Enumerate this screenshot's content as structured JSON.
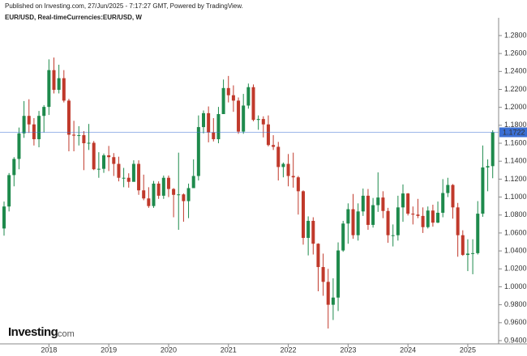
{
  "header": {
    "published": "Published on Investing.com, 27/Jun/2025 - 7:17:27 GMT, Powered by TradingView."
  },
  "logo": {
    "brand": "Investing",
    "suffix": ".com"
  },
  "chart_data": {
    "type": "candlestick",
    "title": "EUR/USD, Real-timeCurrencies:EUR/USD, W",
    "up_color": "#1e8a4c",
    "down_color": "#c0392b",
    "categories": [
      null,
      null,
      null,
      null,
      null,
      null,
      null,
      null,
      null,
      "2018",
      null,
      null,
      null,
      null,
      null,
      null,
      null,
      null,
      null,
      null,
      null,
      "2019",
      null,
      null,
      null,
      null,
      null,
      null,
      null,
      null,
      null,
      null,
      null,
      "2020",
      null,
      null,
      null,
      null,
      null,
      null,
      null,
      null,
      null,
      null,
      null,
      "2021",
      null,
      null,
      null,
      null,
      null,
      null,
      null,
      null,
      null,
      null,
      null,
      "2022",
      null,
      null,
      null,
      null,
      null,
      null,
      null,
      null,
      null,
      null,
      null,
      "2023",
      null,
      null,
      null,
      null,
      null,
      null,
      null,
      null,
      null,
      null,
      null,
      "2024",
      null,
      null,
      null,
      null,
      null,
      null,
      null,
      null,
      null,
      null,
      null,
      "2025",
      null,
      null,
      null,
      null,
      null
    ],
    "open": [
      1.065,
      1.0895,
      1.1245,
      1.1425,
      1.171,
      1.1905,
      1.181,
      1.1645,
      1.1905,
      1.2005,
      1.2415,
      1.2195,
      1.2325,
      1.2075,
      1.1695,
      1.1685,
      1.169,
      1.16,
      1.1605,
      1.131,
      1.1315,
      1.1465,
      1.1445,
      1.137,
      1.1215,
      1.1215,
      1.117,
      1.137,
      1.1075,
      1.0985,
      1.09,
      1.115,
      1.1015,
      1.1215,
      1.109,
      1.1025,
      1.103,
      1.0955,
      1.11,
      1.1235,
      1.178,
      1.1935,
      1.172,
      1.1645,
      1.1925,
      1.2215,
      1.2135,
      1.2075,
      1.173,
      1.202,
      1.2225,
      1.186,
      1.187,
      1.181,
      1.158,
      1.156,
      1.1335,
      1.137,
      1.1235,
      1.122,
      1.1065,
      1.0545,
      1.0735,
      1.048,
      1.022,
      1.0055,
      0.98,
      0.988,
      1.0405,
      1.0705,
      1.0865,
      1.0575,
      1.084,
      1.1015,
      1.069,
      1.091,
      1.0995,
      1.0845,
      1.0575,
      1.0575,
      1.0885,
      1.104,
      1.0815,
      1.0805,
      1.079,
      1.0665,
      1.085,
      1.0715,
      1.0825,
      1.1045,
      1.1135,
      1.0885,
      1.0575,
      1.0355,
      1.037,
      1.0375,
      1.0815,
      1.133,
      1.1345
    ],
    "high": [
      1.095,
      1.1268,
      1.1445,
      1.1775,
      1.207,
      1.209,
      1.188,
      1.196,
      1.2025,
      1.2535,
      1.2555,
      1.2475,
      1.2415,
      1.2095,
      1.185,
      1.179,
      1.1735,
      1.1815,
      1.1625,
      1.15,
      1.1485,
      1.157,
      1.149,
      1.145,
      1.1325,
      1.1265,
      1.141,
      1.141,
      1.125,
      1.111,
      1.118,
      1.1175,
      1.124,
      1.124,
      1.11,
      1.1495,
      1.104,
      1.115,
      1.142,
      1.191,
      1.1965,
      1.201,
      1.188,
      1.2005,
      1.231,
      1.235,
      1.2245,
      1.211,
      1.215,
      1.2265,
      1.2255,
      1.191,
      1.19,
      1.191,
      1.169,
      1.1615,
      1.1385,
      1.148,
      1.1495,
      1.1235,
      1.1075,
      1.0785,
      1.0775,
      1.0485,
      1.037,
      1.02,
      1.0095,
      1.0495,
      1.0735,
      1.093,
      1.1035,
      1.093,
      1.1095,
      1.109,
      1.099,
      1.1275,
      1.1065,
      1.088,
      1.0695,
      1.1015,
      1.114,
      1.1045,
      1.0895,
      1.098,
      1.0885,
      1.0895,
      1.0915,
      1.095,
      1.12,
      1.1215,
      1.1145,
      1.0935,
      1.063,
      1.053,
      1.053,
      1.0955,
      1.1575,
      1.142,
      1.1745
    ],
    "low": [
      1.057,
      1.084,
      1.112,
      1.131,
      1.166,
      1.1715,
      1.1575,
      1.1555,
      1.172,
      1.1915,
      1.2155,
      1.2155,
      1.2055,
      1.151,
      1.151,
      1.1575,
      1.13,
      1.1525,
      1.13,
      1.1215,
      1.127,
      1.129,
      1.1235,
      1.1175,
      1.111,
      1.1105,
      1.118,
      1.1025,
      1.0965,
      1.088,
      1.088,
      1.098,
      1.098,
      1.1,
      1.0775,
      1.0635,
      1.0725,
      1.0765,
      1.11,
      1.1185,
      1.171,
      1.161,
      1.162,
      1.16,
      1.1925,
      1.2055,
      1.195,
      1.1705,
      1.1705,
      1.1985,
      1.1845,
      1.175,
      1.1665,
      1.1565,
      1.1525,
      1.1185,
      1.122,
      1.112,
      1.1105,
      1.0805,
      1.047,
      1.035,
      1.036,
      0.995,
      0.99,
      0.9535,
      0.963,
      0.973,
      1.039,
      1.048,
      1.0535,
      1.0515,
      1.079,
      1.0635,
      1.066,
      1.0835,
      1.0765,
      1.049,
      1.045,
      1.0515,
      1.0725,
      1.0795,
      1.0695,
      1.0765,
      1.06,
      1.065,
      1.067,
      1.071,
      1.0775,
      1.1,
      1.076,
      1.0335,
      1.0345,
      1.0175,
      1.014,
      1.036,
      1.078,
      1.1065,
      1.121
    ],
    "close": [
      1.0895,
      1.1245,
      1.1425,
      1.171,
      1.1905,
      1.181,
      1.1645,
      1.1905,
      1.2005,
      1.2415,
      1.2195,
      1.2325,
      1.2075,
      1.1695,
      1.1685,
      1.169,
      1.16,
      1.1605,
      1.131,
      1.1315,
      1.1465,
      1.1445,
      1.137,
      1.1215,
      1.1215,
      1.117,
      1.137,
      1.1075,
      1.0985,
      1.09,
      1.115,
      1.1015,
      1.1215,
      1.109,
      1.1025,
      1.103,
      1.0955,
      1.11,
      1.1235,
      1.178,
      1.1935,
      1.172,
      1.1645,
      1.1925,
      1.2215,
      1.2135,
      1.2075,
      1.173,
      1.202,
      1.2225,
      1.186,
      1.187,
      1.181,
      1.158,
      1.156,
      1.1335,
      1.137,
      1.1235,
      1.122,
      1.1065,
      1.0545,
      1.0735,
      1.048,
      1.022,
      1.0055,
      0.98,
      0.988,
      1.0405,
      1.0705,
      1.0865,
      1.0575,
      1.084,
      1.1015,
      1.069,
      1.091,
      1.0995,
      1.0845,
      1.0575,
      1.0575,
      1.0885,
      1.104,
      1.0815,
      1.0805,
      1.079,
      1.0665,
      1.085,
      1.0715,
      1.0825,
      1.1045,
      1.1135,
      1.0885,
      1.0575,
      1.0355,
      1.037,
      1.0375,
      1.0815,
      1.133,
      1.1345,
      1.1722
    ],
    "last_price": {
      "value": 1.1722,
      "label": "1.1722"
    },
    "last_price_color": "#3b6fd4",
    "ylim": [
      0.9364,
      1.2998
    ],
    "yticks": [
      {
        "value": 0.94,
        "label": "0.9400"
      },
      {
        "value": 0.96,
        "label": "0.9600"
      },
      {
        "value": 0.98,
        "label": "0.9800"
      },
      {
        "value": 1.0,
        "label": "1.0000"
      },
      {
        "value": 1.02,
        "label": "1.0200"
      },
      {
        "value": 1.04,
        "label": "1.0400"
      },
      {
        "value": 1.06,
        "label": "1.0600"
      },
      {
        "value": 1.08,
        "label": "1.0800"
      },
      {
        "value": 1.1,
        "label": "1.1000"
      },
      {
        "value": 1.12,
        "label": "1.1200"
      },
      {
        "value": 1.14,
        "label": "1.1400"
      },
      {
        "value": 1.16,
        "label": "1.1600"
      },
      {
        "value": 1.18,
        "label": "1.1800"
      },
      {
        "value": 1.2,
        "label": "1.2000"
      },
      {
        "value": 1.22,
        "label": "1.2200"
      },
      {
        "value": 1.24,
        "label": "1.2400"
      },
      {
        "value": 1.26,
        "label": "1.2600"
      },
      {
        "value": 1.28,
        "label": "1.2800"
      }
    ],
    "grid": false
  }
}
